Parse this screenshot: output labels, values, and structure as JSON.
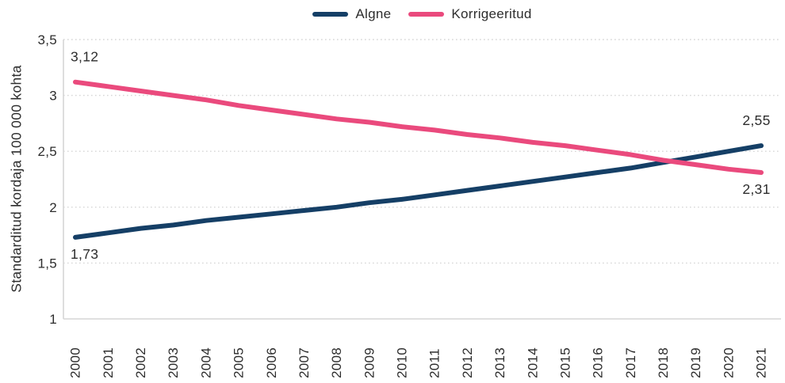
{
  "colors": {
    "grid": "#d6d6d6",
    "axis": "#d6d6d6",
    "text": "#2d2d2d",
    "background": "#ffffff"
  },
  "chart_data": {
    "type": "line",
    "title": "",
    "xlabel": "",
    "ylabel": "Standarditud kordaja 100 000 kohta",
    "ylim": [
      1,
      3.5
    ],
    "grid": "horizontal-dotted",
    "legend_position": "top-center",
    "x": [
      "2000",
      "2001",
      "2002",
      "2003",
      "2004",
      "2005",
      "2006",
      "2007",
      "2008",
      "2009",
      "2010",
      "2011",
      "2012",
      "2013",
      "2014",
      "2015",
      "2016",
      "2017",
      "2018",
      "2019",
      "2020",
      "2021"
    ],
    "series": [
      {
        "name": "Algne",
        "color": "#153f66",
        "values": [
          1.73,
          1.77,
          1.81,
          1.84,
          1.88,
          1.91,
          1.94,
          1.97,
          2.0,
          2.04,
          2.07,
          2.11,
          2.15,
          2.19,
          2.23,
          2.27,
          2.31,
          2.35,
          2.4,
          2.45,
          2.5,
          2.55
        ]
      },
      {
        "name": "Korrigeeritud",
        "color": "#ea4a7d",
        "values": [
          3.12,
          3.08,
          3.04,
          3.0,
          2.96,
          2.91,
          2.87,
          2.83,
          2.79,
          2.76,
          2.72,
          2.69,
          2.65,
          2.62,
          2.58,
          2.55,
          2.51,
          2.47,
          2.42,
          2.38,
          2.34,
          2.31
        ]
      }
    ],
    "y_ticks": [
      {
        "value": 3.5,
        "label": "3,5"
      },
      {
        "value": 3.0,
        "label": "3"
      },
      {
        "value": 2.5,
        "label": "2,5"
      },
      {
        "value": 2.0,
        "label": "2"
      },
      {
        "value": 1.5,
        "label": "1,5"
      },
      {
        "value": 1.0,
        "label": "1"
      }
    ],
    "annotations": [
      {
        "text": "3,12",
        "series": "Korrigeeritud",
        "year": 2000,
        "value": 3.12,
        "placement": "above",
        "align": "start"
      },
      {
        "text": "1,73",
        "series": "Algne",
        "year": 2000,
        "value": 1.73,
        "placement": "below",
        "align": "start"
      },
      {
        "text": "2,55",
        "series": "Algne",
        "year": 2021,
        "value": 2.55,
        "placement": "above",
        "align": "middle"
      },
      {
        "text": "2,31",
        "series": "Korrigeeritud",
        "year": 2021,
        "value": 2.31,
        "placement": "below",
        "align": "middle"
      }
    ]
  }
}
